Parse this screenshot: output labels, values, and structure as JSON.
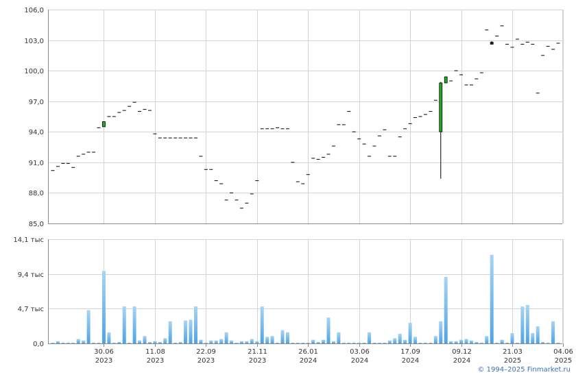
{
  "colors": {
    "up": "#22aa22",
    "down": "#0a3d0a",
    "flat": "#000000",
    "volume_top": "#a8d4f2",
    "volume_bottom": "#4ea3e6",
    "grid": "#d4d4d4",
    "axis": "#888888"
  },
  "copyright": "© 1994–2025 Finmarket.ru",
  "chart_data": [
    {
      "type": "candlestick",
      "title": "",
      "ylim": [
        85.0,
        106.0
      ],
      "yticks": [
        "85,0",
        "88,0",
        "91,0",
        "94,0",
        "97,0",
        "100,0",
        "103,0",
        "106,0"
      ],
      "ytick_values": [
        85,
        88,
        91,
        94,
        97,
        100,
        103,
        106
      ],
      "grid": true,
      "candles": [
        {
          "o": 90.2,
          "h": 90.2,
          "l": 90.2,
          "c": 90.2
        },
        {
          "o": 90.6,
          "h": 90.6,
          "l": 90.6,
          "c": 90.6
        },
        {
          "o": 90.9,
          "h": 90.9,
          "l": 90.9,
          "c": 90.9
        },
        {
          "o": 90.9,
          "h": 90.9,
          "l": 90.9,
          "c": 90.9
        },
        {
          "o": 90.5,
          "h": 90.5,
          "l": 90.5,
          "c": 90.5
        },
        {
          "o": 91.6,
          "h": 91.6,
          "l": 91.6,
          "c": 91.6
        },
        {
          "o": 91.8,
          "h": 91.8,
          "l": 91.8,
          "c": 91.8
        },
        {
          "o": 92.0,
          "h": 92.0,
          "l": 92.0,
          "c": 92.0
        },
        {
          "o": 92.0,
          "h": 92.0,
          "l": 92.0,
          "c": 92.0
        },
        {
          "o": 94.4,
          "h": 94.4,
          "l": 94.4,
          "c": 94.4
        },
        {
          "o": 94.5,
          "h": 95.0,
          "l": 94.5,
          "c": 95.0
        },
        {
          "o": 95.5,
          "h": 95.5,
          "l": 95.5,
          "c": 95.5
        },
        {
          "o": 95.5,
          "h": 95.5,
          "l": 95.5,
          "c": 95.5
        },
        {
          "o": 95.9,
          "h": 95.9,
          "l": 95.9,
          "c": 95.9
        },
        {
          "o": 96.1,
          "h": 96.1,
          "l": 96.1,
          "c": 96.1
        },
        {
          "o": 96.5,
          "h": 96.5,
          "l": 96.5,
          "c": 96.5
        },
        {
          "o": 96.9,
          "h": 96.9,
          "l": 96.9,
          "c": 96.9
        },
        {
          "o": 96.0,
          "h": 96.0,
          "l": 96.0,
          "c": 96.0
        },
        {
          "o": 96.2,
          "h": 96.2,
          "l": 96.2,
          "c": 96.2
        },
        {
          "o": 96.1,
          "h": 96.1,
          "l": 96.1,
          "c": 96.1
        },
        {
          "o": 93.8,
          "h": 93.8,
          "l": 93.8,
          "c": 93.8
        },
        {
          "o": 93.4,
          "h": 93.4,
          "l": 93.4,
          "c": 93.4
        },
        {
          "o": 93.4,
          "h": 93.4,
          "l": 93.4,
          "c": 93.4
        },
        {
          "o": 93.4,
          "h": 93.4,
          "l": 93.4,
          "c": 93.4
        },
        {
          "o": 93.4,
          "h": 93.4,
          "l": 93.4,
          "c": 93.4
        },
        {
          "o": 93.4,
          "h": 93.4,
          "l": 93.4,
          "c": 93.4
        },
        {
          "o": 93.4,
          "h": 93.4,
          "l": 93.4,
          "c": 93.4
        },
        {
          "o": 93.4,
          "h": 93.4,
          "l": 93.4,
          "c": 93.4
        },
        {
          "o": 93.4,
          "h": 93.4,
          "l": 93.4,
          "c": 93.4
        },
        {
          "o": 91.6,
          "h": 91.6,
          "l": 91.6,
          "c": 91.6
        },
        {
          "o": 90.3,
          "h": 90.3,
          "l": 90.3,
          "c": 90.3
        },
        {
          "o": 90.3,
          "h": 90.3,
          "l": 90.3,
          "c": 90.3
        },
        {
          "o": 89.2,
          "h": 89.2,
          "l": 89.2,
          "c": 89.2
        },
        {
          "o": 88.9,
          "h": 88.9,
          "l": 88.9,
          "c": 88.9
        },
        {
          "o": 87.3,
          "h": 87.3,
          "l": 87.3,
          "c": 87.3
        },
        {
          "o": 88.0,
          "h": 88.0,
          "l": 88.0,
          "c": 88.0
        },
        {
          "o": 87.3,
          "h": 87.3,
          "l": 87.3,
          "c": 87.3
        },
        {
          "o": 86.5,
          "h": 86.5,
          "l": 86.5,
          "c": 86.5
        },
        {
          "o": 87.0,
          "h": 87.0,
          "l": 87.0,
          "c": 87.0
        },
        {
          "o": 87.9,
          "h": 87.9,
          "l": 87.9,
          "c": 87.9
        },
        {
          "o": 89.2,
          "h": 89.2,
          "l": 89.2,
          "c": 89.2
        },
        {
          "o": 94.3,
          "h": 94.3,
          "l": 94.3,
          "c": 94.3
        },
        {
          "o": 94.3,
          "h": 94.3,
          "l": 94.3,
          "c": 94.3
        },
        {
          "o": 94.3,
          "h": 94.3,
          "l": 94.3,
          "c": 94.3
        },
        {
          "o": 94.4,
          "h": 94.4,
          "l": 94.4,
          "c": 94.4
        },
        {
          "o": 94.3,
          "h": 94.3,
          "l": 94.3,
          "c": 94.3
        },
        {
          "o": 94.3,
          "h": 94.3,
          "l": 94.3,
          "c": 94.3
        },
        {
          "o": 91.0,
          "h": 91.0,
          "l": 91.0,
          "c": 91.0
        },
        {
          "o": 89.1,
          "h": 89.1,
          "l": 89.1,
          "c": 89.1
        },
        {
          "o": 88.9,
          "h": 88.9,
          "l": 88.9,
          "c": 88.9
        },
        {
          "o": 89.8,
          "h": 89.8,
          "l": 89.8,
          "c": 89.8
        },
        {
          "o": 91.4,
          "h": 91.4,
          "l": 91.4,
          "c": 91.4
        },
        {
          "o": 91.3,
          "h": 91.3,
          "l": 91.3,
          "c": 91.3
        },
        {
          "o": 91.5,
          "h": 91.5,
          "l": 91.5,
          "c": 91.5
        },
        {
          "o": 91.8,
          "h": 91.8,
          "l": 91.8,
          "c": 91.8
        },
        {
          "o": 92.6,
          "h": 92.6,
          "l": 92.6,
          "c": 92.6
        },
        {
          "o": 94.7,
          "h": 94.7,
          "l": 94.7,
          "c": 94.7
        },
        {
          "o": 94.7,
          "h": 94.7,
          "l": 94.7,
          "c": 94.7
        },
        {
          "o": 96.0,
          "h": 96.0,
          "l": 96.0,
          "c": 96.0
        },
        {
          "o": 94.0,
          "h": 94.0,
          "l": 94.0,
          "c": 94.0
        },
        {
          "o": 93.3,
          "h": 93.3,
          "l": 93.3,
          "c": 93.3
        },
        {
          "o": 92.8,
          "h": 92.8,
          "l": 92.8,
          "c": 92.8
        },
        {
          "o": 91.6,
          "h": 91.6,
          "l": 91.6,
          "c": 91.6
        },
        {
          "o": 92.6,
          "h": 92.6,
          "l": 92.6,
          "c": 92.6
        },
        {
          "o": 93.6,
          "h": 93.6,
          "l": 93.6,
          "c": 93.6
        },
        {
          "o": 94.2,
          "h": 94.2,
          "l": 94.2,
          "c": 94.2
        },
        {
          "o": 91.6,
          "h": 91.6,
          "l": 91.6,
          "c": 91.6
        },
        {
          "o": 91.6,
          "h": 91.6,
          "l": 91.6,
          "c": 91.6
        },
        {
          "o": 93.5,
          "h": 93.5,
          "l": 93.5,
          "c": 93.5
        },
        {
          "o": 94.3,
          "h": 94.3,
          "l": 94.3,
          "c": 94.3
        },
        {
          "o": 94.8,
          "h": 94.8,
          "l": 94.8,
          "c": 94.8
        },
        {
          "o": 95.4,
          "h": 95.4,
          "l": 95.4,
          "c": 95.4
        },
        {
          "o": 95.5,
          "h": 95.5,
          "l": 95.5,
          "c": 95.5
        },
        {
          "o": 95.7,
          "h": 95.7,
          "l": 95.7,
          "c": 95.7
        },
        {
          "o": 96.0,
          "h": 96.0,
          "l": 96.0,
          "c": 96.0
        },
        {
          "o": 97.1,
          "h": 97.1,
          "l": 97.1,
          "c": 97.1
        },
        {
          "o": 94.0,
          "h": 98.9,
          "l": 89.4,
          "c": 98.8
        },
        {
          "o": 98.8,
          "h": 99.4,
          "l": 98.8,
          "c": 99.4
        },
        {
          "o": 99.0,
          "h": 99.0,
          "l": 99.0,
          "c": 99.0
        },
        {
          "o": 100.0,
          "h": 100.0,
          "l": 100.0,
          "c": 100.0
        },
        {
          "o": 99.6,
          "h": 99.6,
          "l": 99.6,
          "c": 99.6
        },
        {
          "o": 98.6,
          "h": 98.6,
          "l": 98.6,
          "c": 98.6
        },
        {
          "o": 98.6,
          "h": 98.6,
          "l": 98.6,
          "c": 98.6
        },
        {
          "o": 99.2,
          "h": 99.2,
          "l": 99.2,
          "c": 99.2
        },
        {
          "o": 99.8,
          "h": 99.8,
          "l": 99.8,
          "c": 99.8
        },
        {
          "o": 104.0,
          "h": 104.0,
          "l": 104.0,
          "c": 104.0
        },
        {
          "o": 102.8,
          "h": 102.9,
          "l": 102.6,
          "c": 102.6
        },
        {
          "o": 103.4,
          "h": 103.4,
          "l": 103.4,
          "c": 103.4
        },
        {
          "o": 104.4,
          "h": 104.4,
          "l": 104.4,
          "c": 104.4
        },
        {
          "o": 102.6,
          "h": 102.6,
          "l": 102.6,
          "c": 102.6
        },
        {
          "o": 102.3,
          "h": 102.3,
          "l": 102.3,
          "c": 102.3
        },
        {
          "o": 103.1,
          "h": 103.1,
          "l": 103.1,
          "c": 103.1
        },
        {
          "o": 102.6,
          "h": 102.6,
          "l": 102.6,
          "c": 102.6
        },
        {
          "o": 102.8,
          "h": 102.8,
          "l": 102.8,
          "c": 102.8
        },
        {
          "o": 102.6,
          "h": 102.6,
          "l": 102.6,
          "c": 102.6
        },
        {
          "o": 97.8,
          "h": 97.8,
          "l": 97.8,
          "c": 97.8
        },
        {
          "o": 101.5,
          "h": 101.5,
          "l": 101.5,
          "c": 101.5
        },
        {
          "o": 102.4,
          "h": 102.4,
          "l": 102.4,
          "c": 102.4
        },
        {
          "o": 102.1,
          "h": 102.1,
          "l": 102.1,
          "c": 102.1
        },
        {
          "o": 102.7,
          "h": 102.7,
          "l": 102.7,
          "c": 102.7
        }
      ]
    },
    {
      "type": "bar",
      "title": "",
      "ylim": [
        0,
        14.1
      ],
      "yticks": [
        "0,0",
        "4,7 тыс",
        "9,4 тыс",
        "14,1 тыс"
      ],
      "ytick_values": [
        0,
        4.7,
        9.4,
        14.1
      ],
      "unit": "тыс",
      "grid": true,
      "values": [
        0.1,
        0.3,
        0.1,
        0.1,
        0.1,
        0.6,
        0.4,
        4.5,
        0.1,
        0.1,
        9.8,
        1.5,
        0.1,
        0.2,
        5.0,
        0.1,
        5.0,
        0.4,
        1.0,
        0.2,
        0.3,
        0.2,
        0.7,
        3.0,
        0.1,
        0.2,
        3.1,
        3.2,
        5.0,
        0.5,
        0.1,
        0.4,
        0.4,
        0.6,
        1.5,
        0.4,
        0.1,
        0.3,
        0.3,
        0.6,
        0.3,
        5.0,
        0.9,
        1.0,
        0.1,
        1.8,
        1.5,
        0.1,
        0.1,
        0.1,
        0.1,
        0.5,
        0.2,
        0.5,
        3.5,
        0.3,
        1.5,
        0.1,
        0.1,
        0.1,
        0.1,
        0.1,
        1.5,
        0.1,
        0.1,
        0.1,
        0.4,
        0.7,
        1.3,
        0.5,
        2.8,
        0.9,
        0.1,
        0.1,
        0.1,
        1.0,
        3.0,
        9.0,
        0.3,
        0.3,
        0.5,
        0.6,
        0.4,
        0.2,
        0.1,
        1.0,
        12.0,
        0.1,
        0.5,
        0.1,
        1.4,
        0.1,
        5.0,
        5.2,
        1.4,
        2.3,
        0.2,
        0.1,
        3.0,
        0.1
      ],
      "x_ticks": [
        {
          "date": "30.06",
          "year": "2023",
          "index": 10
        },
        {
          "date": "11.08",
          "year": "2023",
          "index": 20
        },
        {
          "date": "22.09",
          "year": "2023",
          "index": 30
        },
        {
          "date": "21.11",
          "year": "2023",
          "index": 40
        },
        {
          "date": "26.01",
          "year": "2024",
          "index": 50
        },
        {
          "date": "03.06",
          "year": "2024",
          "index": 60
        },
        {
          "date": "17.09",
          "year": "2024",
          "index": 70
        },
        {
          "date": "09.12",
          "year": "2024",
          "index": 80
        },
        {
          "date": "21.03",
          "year": "2025",
          "index": 90
        },
        {
          "date": "04.06",
          "year": "2025",
          "index": 100
        }
      ]
    }
  ]
}
